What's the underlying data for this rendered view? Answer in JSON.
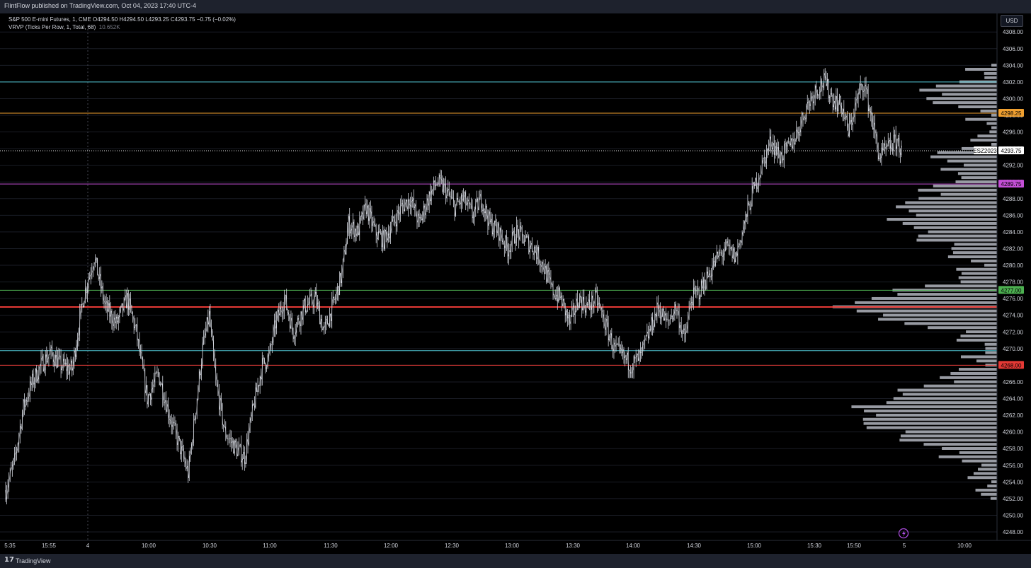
{
  "publisher": "FlintFlow published on TradingView.com, Oct 04, 2023 17:40 UTC-4",
  "legend": {
    "symbol_line": "S&P 500 E-mini Futures, 1, CME  O4294.50  H4294.50  L4293.25  C4293.75  −0.75 (−0.02%)",
    "indicator": "VRVP (Ticks Per Row, 1, Total, 68)",
    "indicator_value": "10.652K"
  },
  "currency_button": "USD",
  "footer": {
    "logo": "𝟭𝟳",
    "brand": "TradingView"
  },
  "colors": {
    "background": "#000000",
    "candle": "#d1d4dc",
    "volume_bar": "#b2b5be",
    "cyan_level": "#4fc3d0",
    "orange_level": "#f0a030",
    "purple_level": "#c44fd6",
    "green_level": "#4caf50",
    "red_level": "#e53935"
  },
  "chart_data": {
    "type": "candlestick",
    "symbol": "ESZ2023",
    "interval": "1",
    "y_axis": {
      "ticks": [
        "4308.00",
        "4306.00",
        "4304.00",
        "4302.00",
        "4300.00",
        "4298.00",
        "4296.00",
        "4294.00",
        "4292.00",
        "4290.00",
        "4288.00",
        "4286.00",
        "4284.00",
        "4282.00",
        "4280.00",
        "4278.00",
        "4276.00",
        "4274.00",
        "4272.00",
        "4270.00",
        "4268.00",
        "4266.00",
        "4264.00",
        "4262.00",
        "4260.00",
        "4258.00",
        "4256.00",
        "4254.00",
        "4252.00",
        "4250.00",
        "4248.00"
      ],
      "range": [
        4247,
        4309
      ]
    },
    "x_axis": {
      "ticks": [
        "5:35",
        "15:55",
        "4",
        "10:00",
        "10:30",
        "11:00",
        "11:30",
        "12:00",
        "12:30",
        "13:00",
        "13:30",
        "14:00",
        "14:30",
        "15:00",
        "15:30",
        "15:50",
        "5",
        "10:00"
      ]
    },
    "price_path": [
      [
        4253,
        0
      ],
      [
        4256.5,
        8
      ],
      [
        4263,
        16
      ],
      [
        4266,
        24
      ],
      [
        4268,
        32
      ],
      [
        4269.5,
        40
      ],
      [
        4268,
        50
      ],
      [
        4267.5,
        60
      ],
      [
        4276,
        70
      ],
      [
        4281,
        80
      ],
      [
        4275,
        90
      ],
      [
        4273,
        100
      ],
      [
        4276,
        110
      ],
      [
        4272,
        118
      ],
      [
        4264,
        128
      ],
      [
        4267,
        138
      ],
      [
        4262,
        148
      ],
      [
        4258,
        158
      ],
      [
        4255,
        165
      ],
      [
        4263,
        172
      ],
      [
        4270,
        178
      ],
      [
        4274,
        184
      ],
      [
        4266,
        190
      ],
      [
        4260,
        198
      ],
      [
        4258,
        208
      ],
      [
        4257,
        216
      ],
      [
        4263,
        224
      ],
      [
        4268,
        232
      ],
      [
        4269,
        238
      ],
      [
        4273,
        244
      ],
      [
        4276,
        252
      ],
      [
        4272,
        260
      ],
      [
        4275,
        270
      ],
      [
        4276,
        280
      ],
      [
        4272,
        288
      ],
      [
        4276,
        298
      ],
      [
        4279,
        304
      ],
      [
        4285,
        310
      ],
      [
        4284,
        318
      ],
      [
        4287,
        326
      ],
      [
        4284,
        334
      ],
      [
        4283,
        342
      ],
      [
        4285,
        350
      ],
      [
        4287,
        358
      ],
      [
        4288,
        366
      ],
      [
        4285,
        374
      ],
      [
        4288,
        382
      ],
      [
        4290,
        390
      ],
      [
        4289,
        398
      ],
      [
        4287,
        406
      ],
      [
        4288,
        414
      ],
      [
        4286,
        422
      ],
      [
        4288,
        430
      ],
      [
        4285,
        438
      ],
      [
        4284,
        446
      ],
      [
        4282,
        454
      ],
      [
        4284,
        462
      ],
      [
        4283,
        470
      ],
      [
        4282,
        478
      ],
      [
        4280,
        486
      ],
      [
        4277,
        494
      ],
      [
        4276,
        502
      ],
      [
        4273,
        510
      ],
      [
        4276,
        518
      ],
      [
        4275,
        526
      ],
      [
        4276,
        534
      ],
      [
        4273,
        542
      ],
      [
        4270,
        550
      ],
      [
        4269,
        558
      ],
      [
        4268,
        566
      ],
      [
        4269,
        574
      ],
      [
        4272,
        582
      ],
      [
        4275,
        590
      ],
      [
        4273,
        598
      ],
      [
        4275,
        606
      ],
      [
        4271,
        614
      ],
      [
        4276,
        620
      ],
      [
        4277,
        628
      ],
      [
        4279,
        636
      ],
      [
        4281,
        644
      ],
      [
        4282,
        652
      ],
      [
        4281,
        660
      ],
      [
        4285,
        668
      ],
      [
        4289,
        676
      ],
      [
        4292,
        684
      ],
      [
        4295,
        692
      ],
      [
        4293,
        700
      ],
      [
        4294,
        708
      ],
      [
        4296,
        716
      ],
      [
        4299,
        724
      ],
      [
        4301,
        732
      ],
      [
        4302,
        740
      ],
      [
        4300,
        748
      ],
      [
        4299,
        756
      ],
      [
        4296,
        762
      ],
      [
        4300,
        770
      ],
      [
        4302,
        776
      ],
      [
        4297,
        784
      ],
      [
        4293,
        790
      ],
      [
        4294,
        798
      ],
      [
        4295,
        806
      ],
      [
        4293.75,
        810
      ]
    ],
    "volume_profile": {
      "row_height": 1,
      "range": [
        4252,
        4304
      ],
      "note_shape": "bimodal with peaks near 4262 and 4275"
    },
    "horizontal_levels": [
      {
        "price": 4302.0,
        "color": "#4fc3d0",
        "label": ""
      },
      {
        "price": 4298.25,
        "color": "#f0a030",
        "label": "4298.25"
      },
      {
        "price": 4293.75,
        "color": "#ffffff",
        "label": "4293.75",
        "symbol_label": "ESZ2023",
        "dotted": true
      },
      {
        "price": 4289.75,
        "color": "#c44fd6",
        "label": "4289.75"
      },
      {
        "price": 4277.0,
        "color": "#4caf50",
        "label": "4277.00"
      },
      {
        "price": 4275.0,
        "color": "#e53935",
        "label": "",
        "thick": true
      },
      {
        "price": 4269.75,
        "color": "#4fc3d0",
        "label": ""
      },
      {
        "price": 4268.0,
        "color": "#e53935",
        "label": "4268.00"
      }
    ]
  }
}
